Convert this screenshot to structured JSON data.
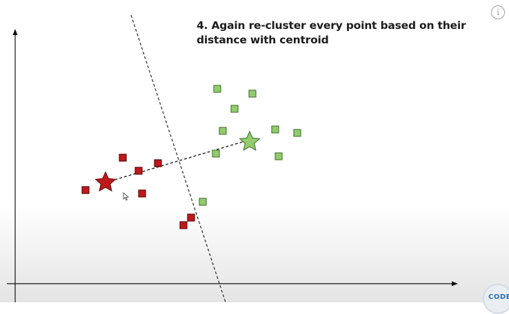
{
  "caption": "4. Again re-cluster every point based on their distance with centroid",
  "info_label": "i",
  "logo_text": "CODE",
  "colors": {
    "red_cluster": "#c0181b",
    "green_cluster": "#92cc6d",
    "axis": "#111111",
    "divider": "#333333"
  },
  "icons": {
    "info": "info-icon",
    "cursor": "mouse-cursor-icon",
    "logo": "codebasics-logo-icon"
  }
}
